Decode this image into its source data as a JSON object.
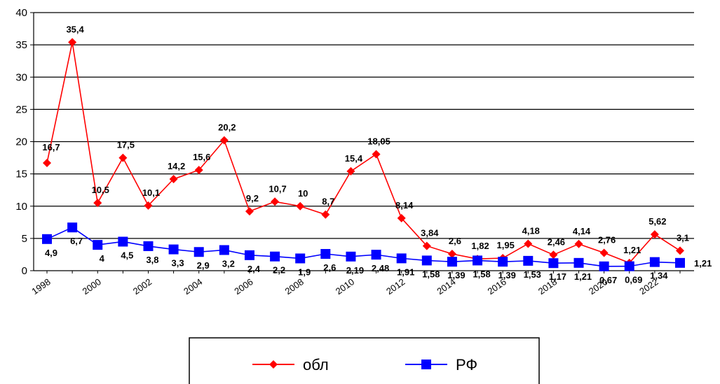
{
  "chart_data": {
    "type": "line",
    "x": [
      "1998",
      "1999",
      "2000",
      "2001",
      "2002",
      "2003",
      "2004",
      "2005",
      "2006",
      "2007",
      "2008",
      "2009",
      "2010",
      "2011",
      "2012",
      "2013",
      "2014",
      "2015",
      "2016",
      "2017",
      "2018",
      "2019",
      "2020",
      "2021",
      "2022",
      "2023"
    ],
    "x_tick_labels": [
      "1998",
      "2000",
      "2002",
      "2004",
      "2006",
      "2008",
      "2010",
      "2012",
      "2014",
      "2016",
      "2018",
      "2020",
      "2022"
    ],
    "ylim": [
      0,
      40
    ],
    "y_ticks": [
      0,
      5,
      10,
      15,
      20,
      25,
      30,
      35,
      40
    ],
    "y_tick_labels": [
      "0",
      "5",
      "10",
      "15",
      "20",
      "25",
      "30",
      "35",
      "40"
    ],
    "grid": true,
    "legend_position": "bottom",
    "series": [
      {
        "name": "обл",
        "color": "#ff0000",
        "marker": "diamond",
        "values": [
          16.7,
          35.4,
          10.5,
          17.5,
          10.1,
          14.2,
          15.6,
          20.2,
          9.2,
          10.7,
          10,
          8.7,
          15.4,
          18.05,
          8.14,
          3.84,
          2.6,
          1.82,
          1.95,
          4.18,
          2.46,
          4.14,
          2.76,
          1.21,
          5.62,
          3.1
        ],
        "labels": [
          "16,7",
          "35,4",
          "10,5",
          "17,5",
          "10,1",
          "14,2",
          "15,6",
          "20,2",
          "9,2",
          "10,7",
          "10",
          "8,7",
          "15,4",
          "18,05",
          "8,14",
          "3,84",
          "2,6",
          "1,82",
          "1,95",
          "4,18",
          "2,46",
          "4,14",
          "2,76",
          "1,21",
          "5,62",
          "3,1"
        ]
      },
      {
        "name": "РФ",
        "color": "#0000ff",
        "marker": "square",
        "values": [
          4.9,
          6.7,
          4,
          4.5,
          3.8,
          3.3,
          2.9,
          3.2,
          2.4,
          2.2,
          1.9,
          2.6,
          2.19,
          2.48,
          1.91,
          1.58,
          1.39,
          1.58,
          1.39,
          1.53,
          1.17,
          1.21,
          0.67,
          0.69,
          1.34,
          1.21
        ],
        "labels": [
          "4,9",
          "6,7",
          "4",
          "4,5",
          "3,8",
          "3,3",
          "2,9",
          "3,2",
          "2,4",
          "2,2",
          "1,9",
          "2,6",
          "2,19",
          "2,48",
          "1,91",
          "1,58",
          "1,39",
          "1,58",
          "1,39",
          "1,53",
          "1,17",
          "1,21",
          "0,67",
          "0,69",
          "1,34",
          "1,21"
        ]
      }
    ]
  }
}
